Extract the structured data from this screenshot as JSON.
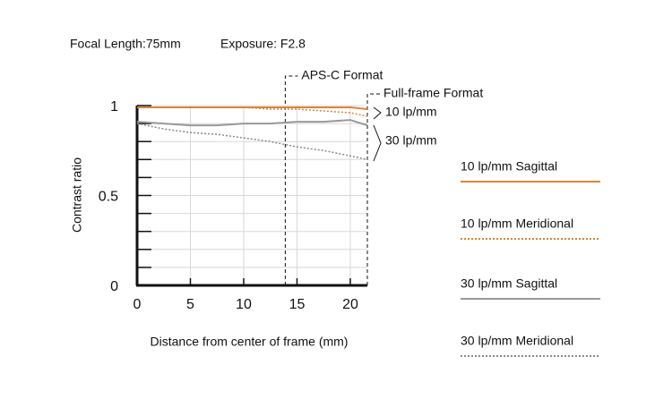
{
  "chart_data": {
    "type": "line",
    "title": "Focal Length:75mm",
    "subtitle": "Exposure: F2.8",
    "x_label": "Distance from center of frame (mm)",
    "y_label": "Contrast ratio",
    "x": [
      0,
      2.5,
      5,
      7.5,
      10,
      12.5,
      15,
      17.5,
      20,
      21.6
    ],
    "series": [
      {
        "name": "10 lp/mm Sagittal",
        "color": "#d9843a",
        "dashed": false,
        "values": [
          0.99,
          0.99,
          0.99,
          0.99,
          0.99,
          0.99,
          0.99,
          0.99,
          0.99,
          0.98
        ]
      },
      {
        "name": "10 lp/mm Meridional",
        "color": "#d9843a",
        "dashed": true,
        "values": [
          0.99,
          0.99,
          0.99,
          0.99,
          0.99,
          0.98,
          0.98,
          0.97,
          0.96,
          0.94
        ]
      },
      {
        "name": "30 lp/mm Sagittal",
        "color": "#999999",
        "dashed": false,
        "values": [
          0.91,
          0.9,
          0.89,
          0.89,
          0.9,
          0.9,
          0.91,
          0.91,
          0.92,
          0.89
        ]
      },
      {
        "name": "30 lp/mm Meridional",
        "color": "#888888",
        "dashed": true,
        "values": [
          0.9,
          0.87,
          0.85,
          0.84,
          0.82,
          0.8,
          0.77,
          0.75,
          0.72,
          0.7
        ]
      }
    ],
    "xlim": [
      0,
      21.6
    ],
    "ylim": [
      0,
      1
    ],
    "xticks": [
      0,
      5,
      10,
      15,
      20
    ],
    "yticks": [
      0,
      0.5,
      1
    ],
    "yminorticks": [
      0.1,
      0.2,
      0.3,
      0.4,
      0.6,
      0.7,
      0.8,
      0.9
    ],
    "grid": true,
    "format_markers": [
      {
        "label": "APS-C Format",
        "x": 13.9
      },
      {
        "label": "Full-frame Format",
        "x": 21.6
      }
    ],
    "annotations": [
      "10 lp/mm",
      "30 lp/mm"
    ]
  }
}
